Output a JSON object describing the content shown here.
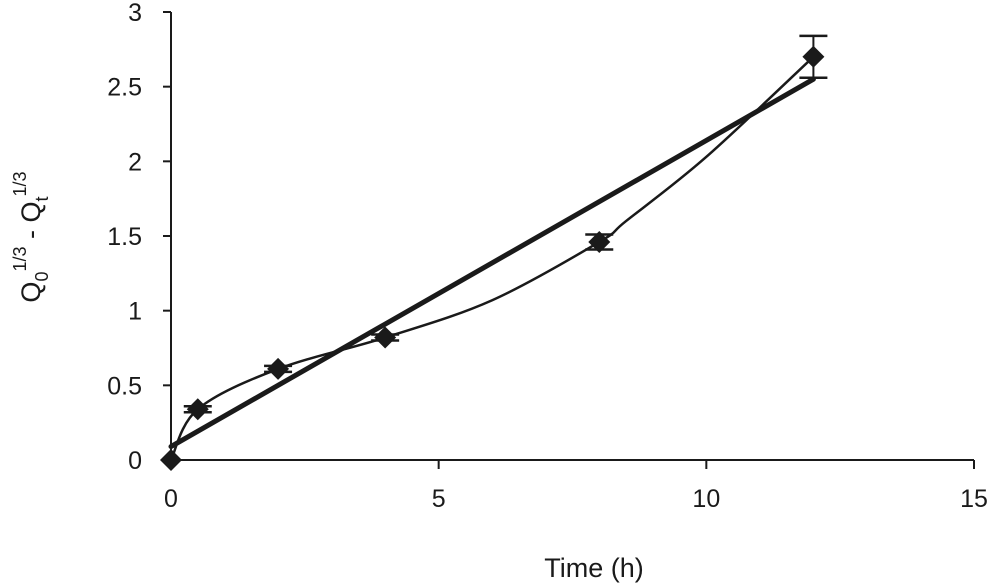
{
  "chart_data": {
    "type": "scatter",
    "xlabel": "Time (h)",
    "ylabel": {
      "base": "Q",
      "sub0": "0",
      "sup1": "1/3",
      "minus": " - ",
      "sub_t": "t",
      "sup2": "1/3"
    },
    "xlim": [
      0,
      15
    ],
    "ylim": [
      0,
      3
    ],
    "xticks": [
      "0",
      "5",
      "10",
      "15"
    ],
    "yticks": [
      "0",
      "0.5",
      "1",
      "1.5",
      "2",
      "2.5",
      "3"
    ],
    "grid": false,
    "legend": "none",
    "series": [
      {
        "kind": "points_with_errorbars",
        "marker": "diamond",
        "x": [
          0,
          0.5,
          2,
          4,
          8,
          12
        ],
        "y": [
          0.0,
          0.34,
          0.61,
          0.82,
          1.46,
          2.7
        ],
        "err": [
          0.0,
          0.02,
          0.02,
          0.02,
          0.05,
          0.14
        ]
      },
      {
        "kind": "smooth_curve",
        "x": [
          0,
          0.5,
          2,
          4,
          6,
          8,
          8.5,
          10,
          12
        ],
        "y": [
          0.0,
          0.34,
          0.61,
          0.82,
          1.07,
          1.46,
          1.6,
          2.03,
          2.7
        ]
      },
      {
        "kind": "linear_fit",
        "x": [
          0,
          12
        ],
        "y": [
          0.09,
          2.55
        ]
      }
    ],
    "colors": {
      "ink": "#1a1a1a"
    }
  }
}
